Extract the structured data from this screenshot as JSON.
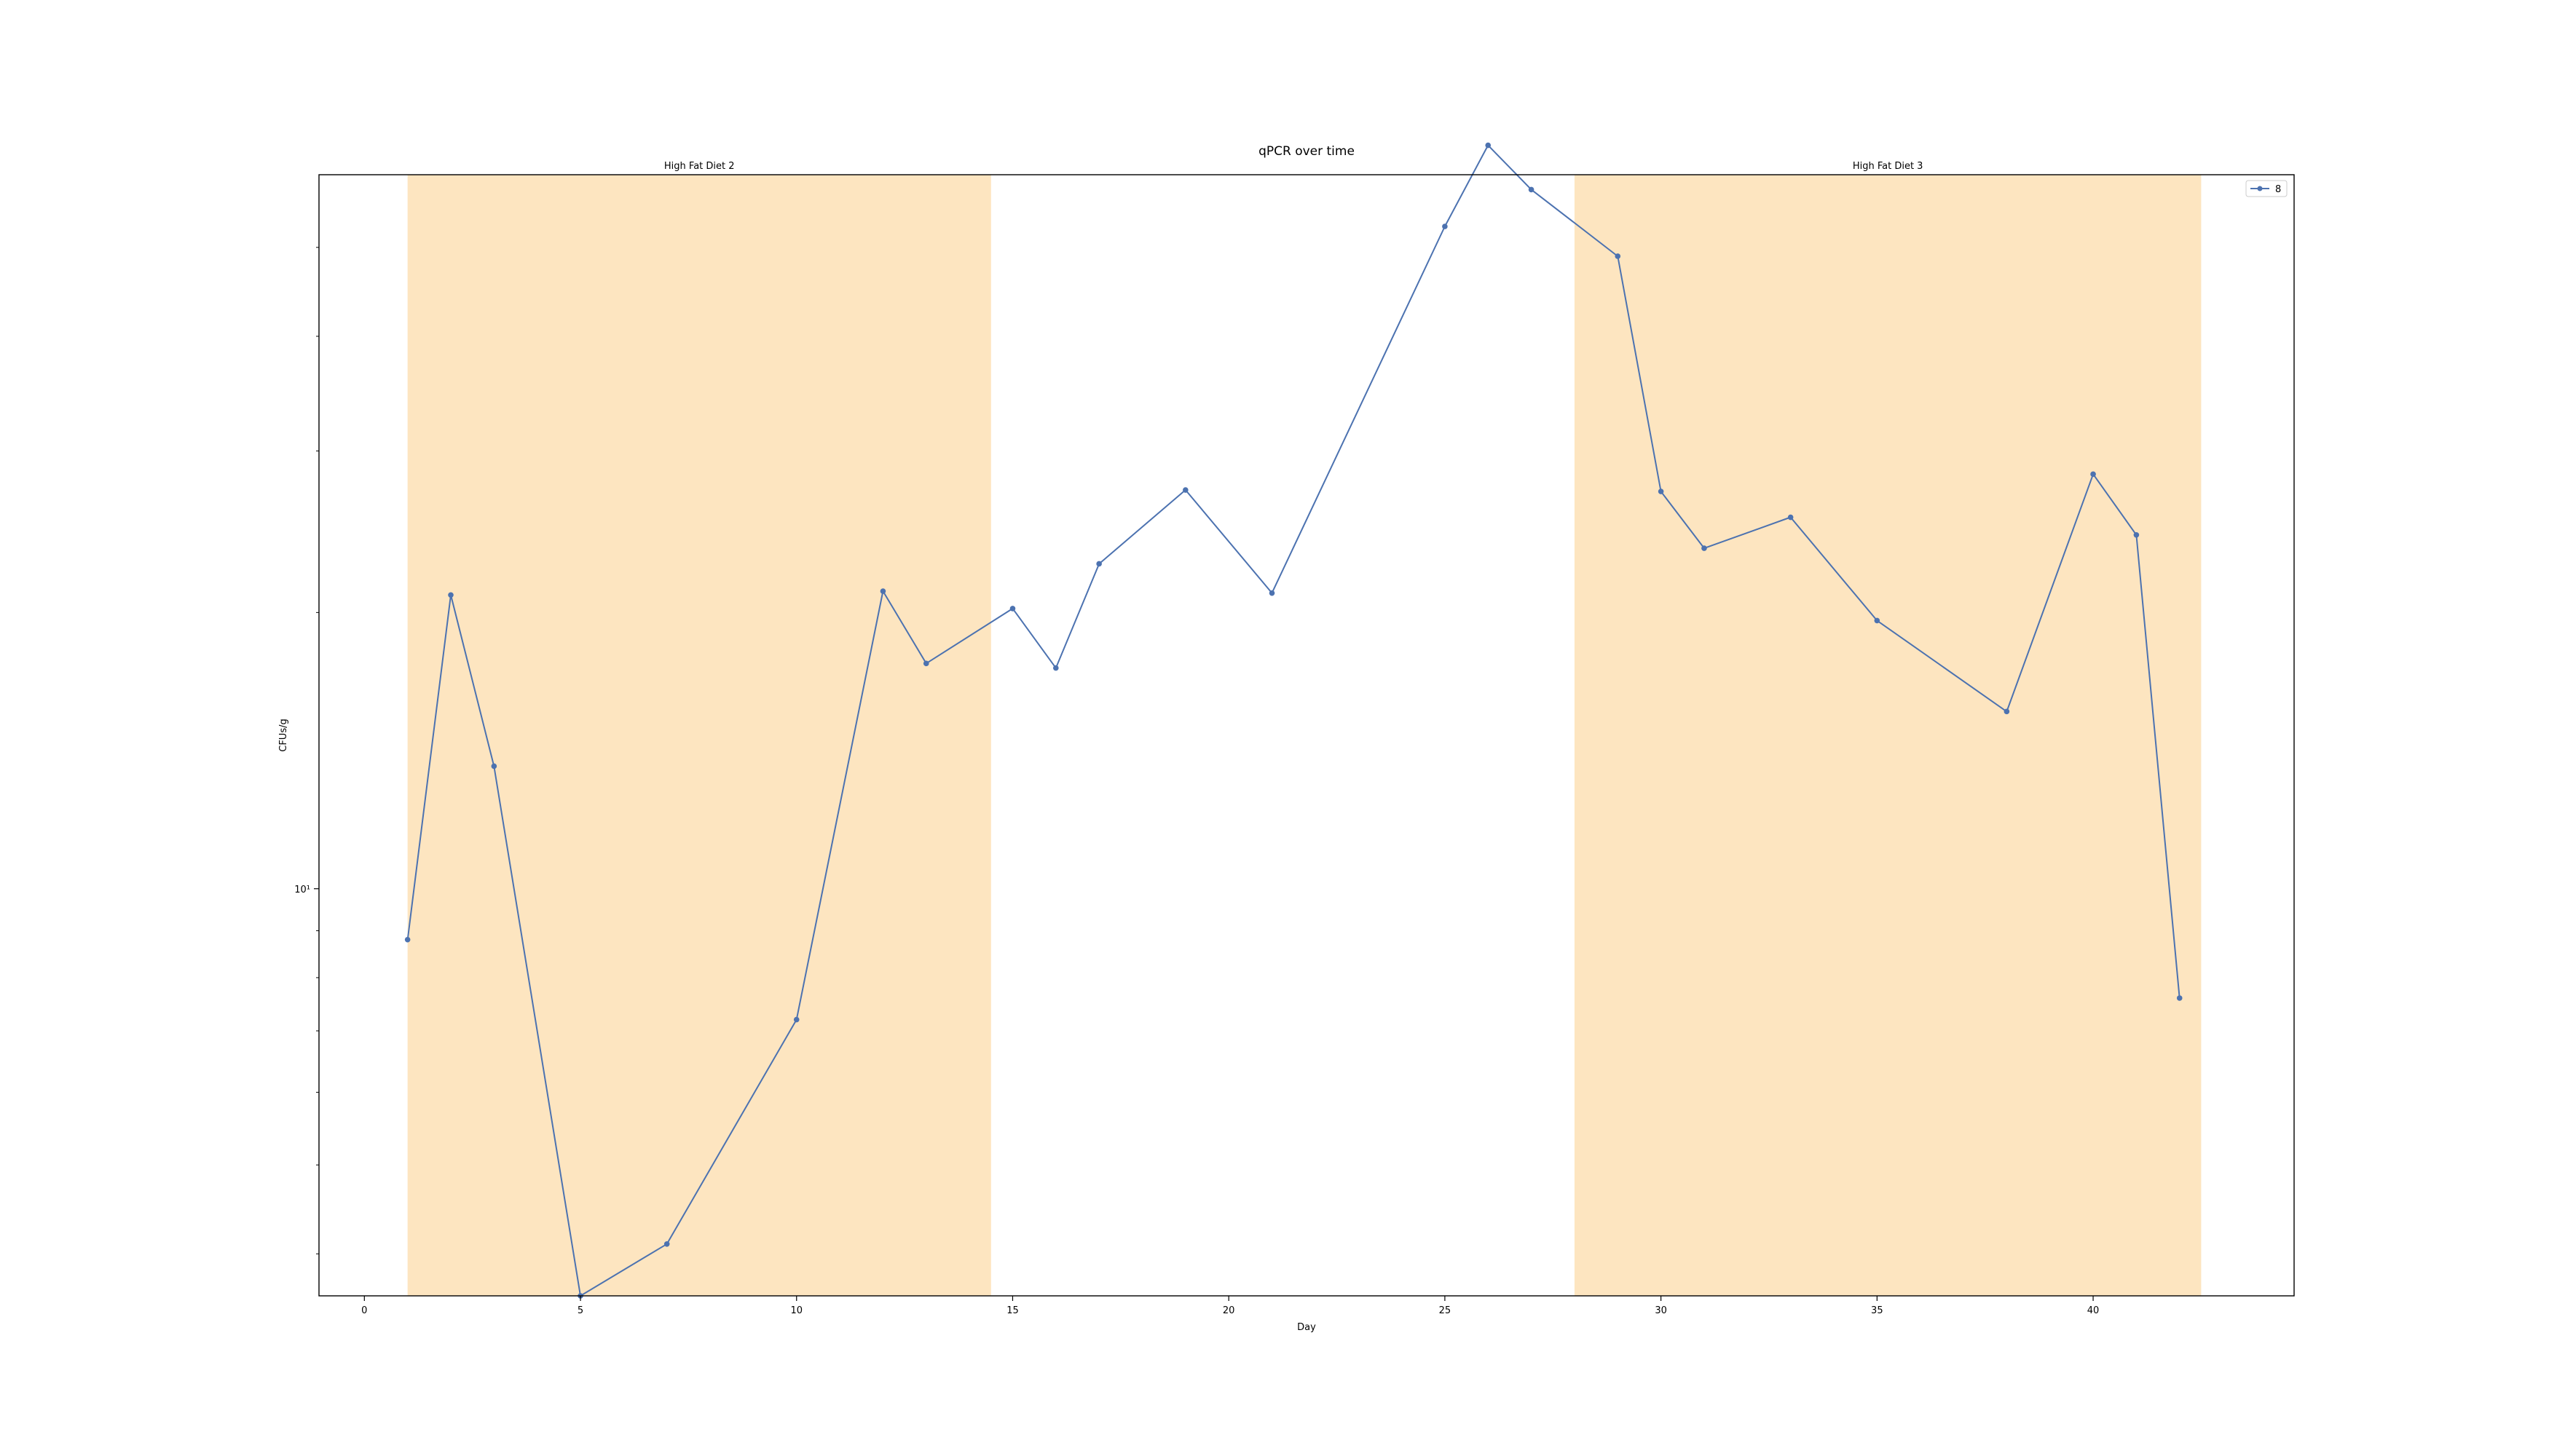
{
  "chart_data": {
    "type": "line",
    "title": "qPCR over time",
    "xlabel": "Day",
    "ylabel": "CFUs/g",
    "xlim": [
      -1.05,
      44.65
    ],
    "ylim": [
      3.6,
      60
    ],
    "yscale": "log",
    "grid": false,
    "legend_position": "top-right",
    "x_ticks": [
      0,
      5,
      10,
      15,
      20,
      25,
      30,
      35,
      40
    ],
    "y_ticks": [
      {
        "value": 10,
        "label": "10¹"
      }
    ],
    "y_minor_ticks": [
      4,
      5,
      6,
      7,
      8,
      9,
      20,
      30,
      40,
      50
    ],
    "shaded_regions": [
      {
        "label": "High Fat Diet 2",
        "x_start": 1,
        "x_end": 14.5,
        "color": "#fde5c0"
      },
      {
        "label": "High Fat Diet 3",
        "x_start": 28,
        "x_end": 42.5,
        "color": "#fde5c0"
      }
    ],
    "series": [
      {
        "name": "8",
        "color": "#4c72b0",
        "marker": "circle",
        "x": [
          1,
          2,
          3,
          5,
          7,
          10,
          12,
          13,
          15,
          16,
          17,
          19,
          21,
          25,
          26,
          27,
          29,
          30,
          31,
          33,
          35,
          38,
          40,
          41,
          42
        ],
        "y": [
          8.8,
          20.9,
          13.6,
          3.6,
          4.1,
          7.2,
          21.1,
          17.6,
          20.2,
          17.4,
          22.6,
          27.2,
          21.0,
          52.7,
          64.6,
          57.8,
          48.9,
          27.1,
          23.5,
          25.4,
          19.6,
          15.6,
          28.3,
          24.3,
          7.6
        ]
      }
    ]
  }
}
